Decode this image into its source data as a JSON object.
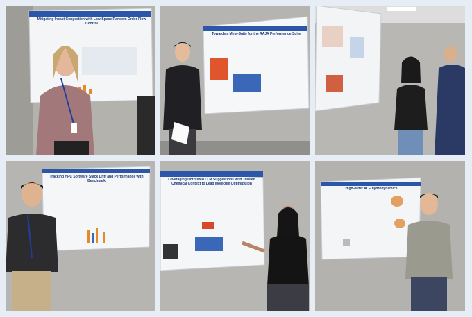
{
  "photos": [
    {
      "poster_title": "Mitigating Incast Congestion with Low-Space Random Order Flow Control"
    },
    {
      "poster_title": "Towards a Meta-Suite for the RAJA Performance Suite"
    },
    {},
    {
      "poster_title": "Tracking HPC Software Stack Drift and Performance with Benchpark"
    },
    {
      "poster_title": "Leveraging Untrusted LLM Suggestions with Trusted Chemical Context to Lead Molecule Optimization"
    },
    {
      "poster_title": "High-order ALE hydrodynamics"
    }
  ]
}
